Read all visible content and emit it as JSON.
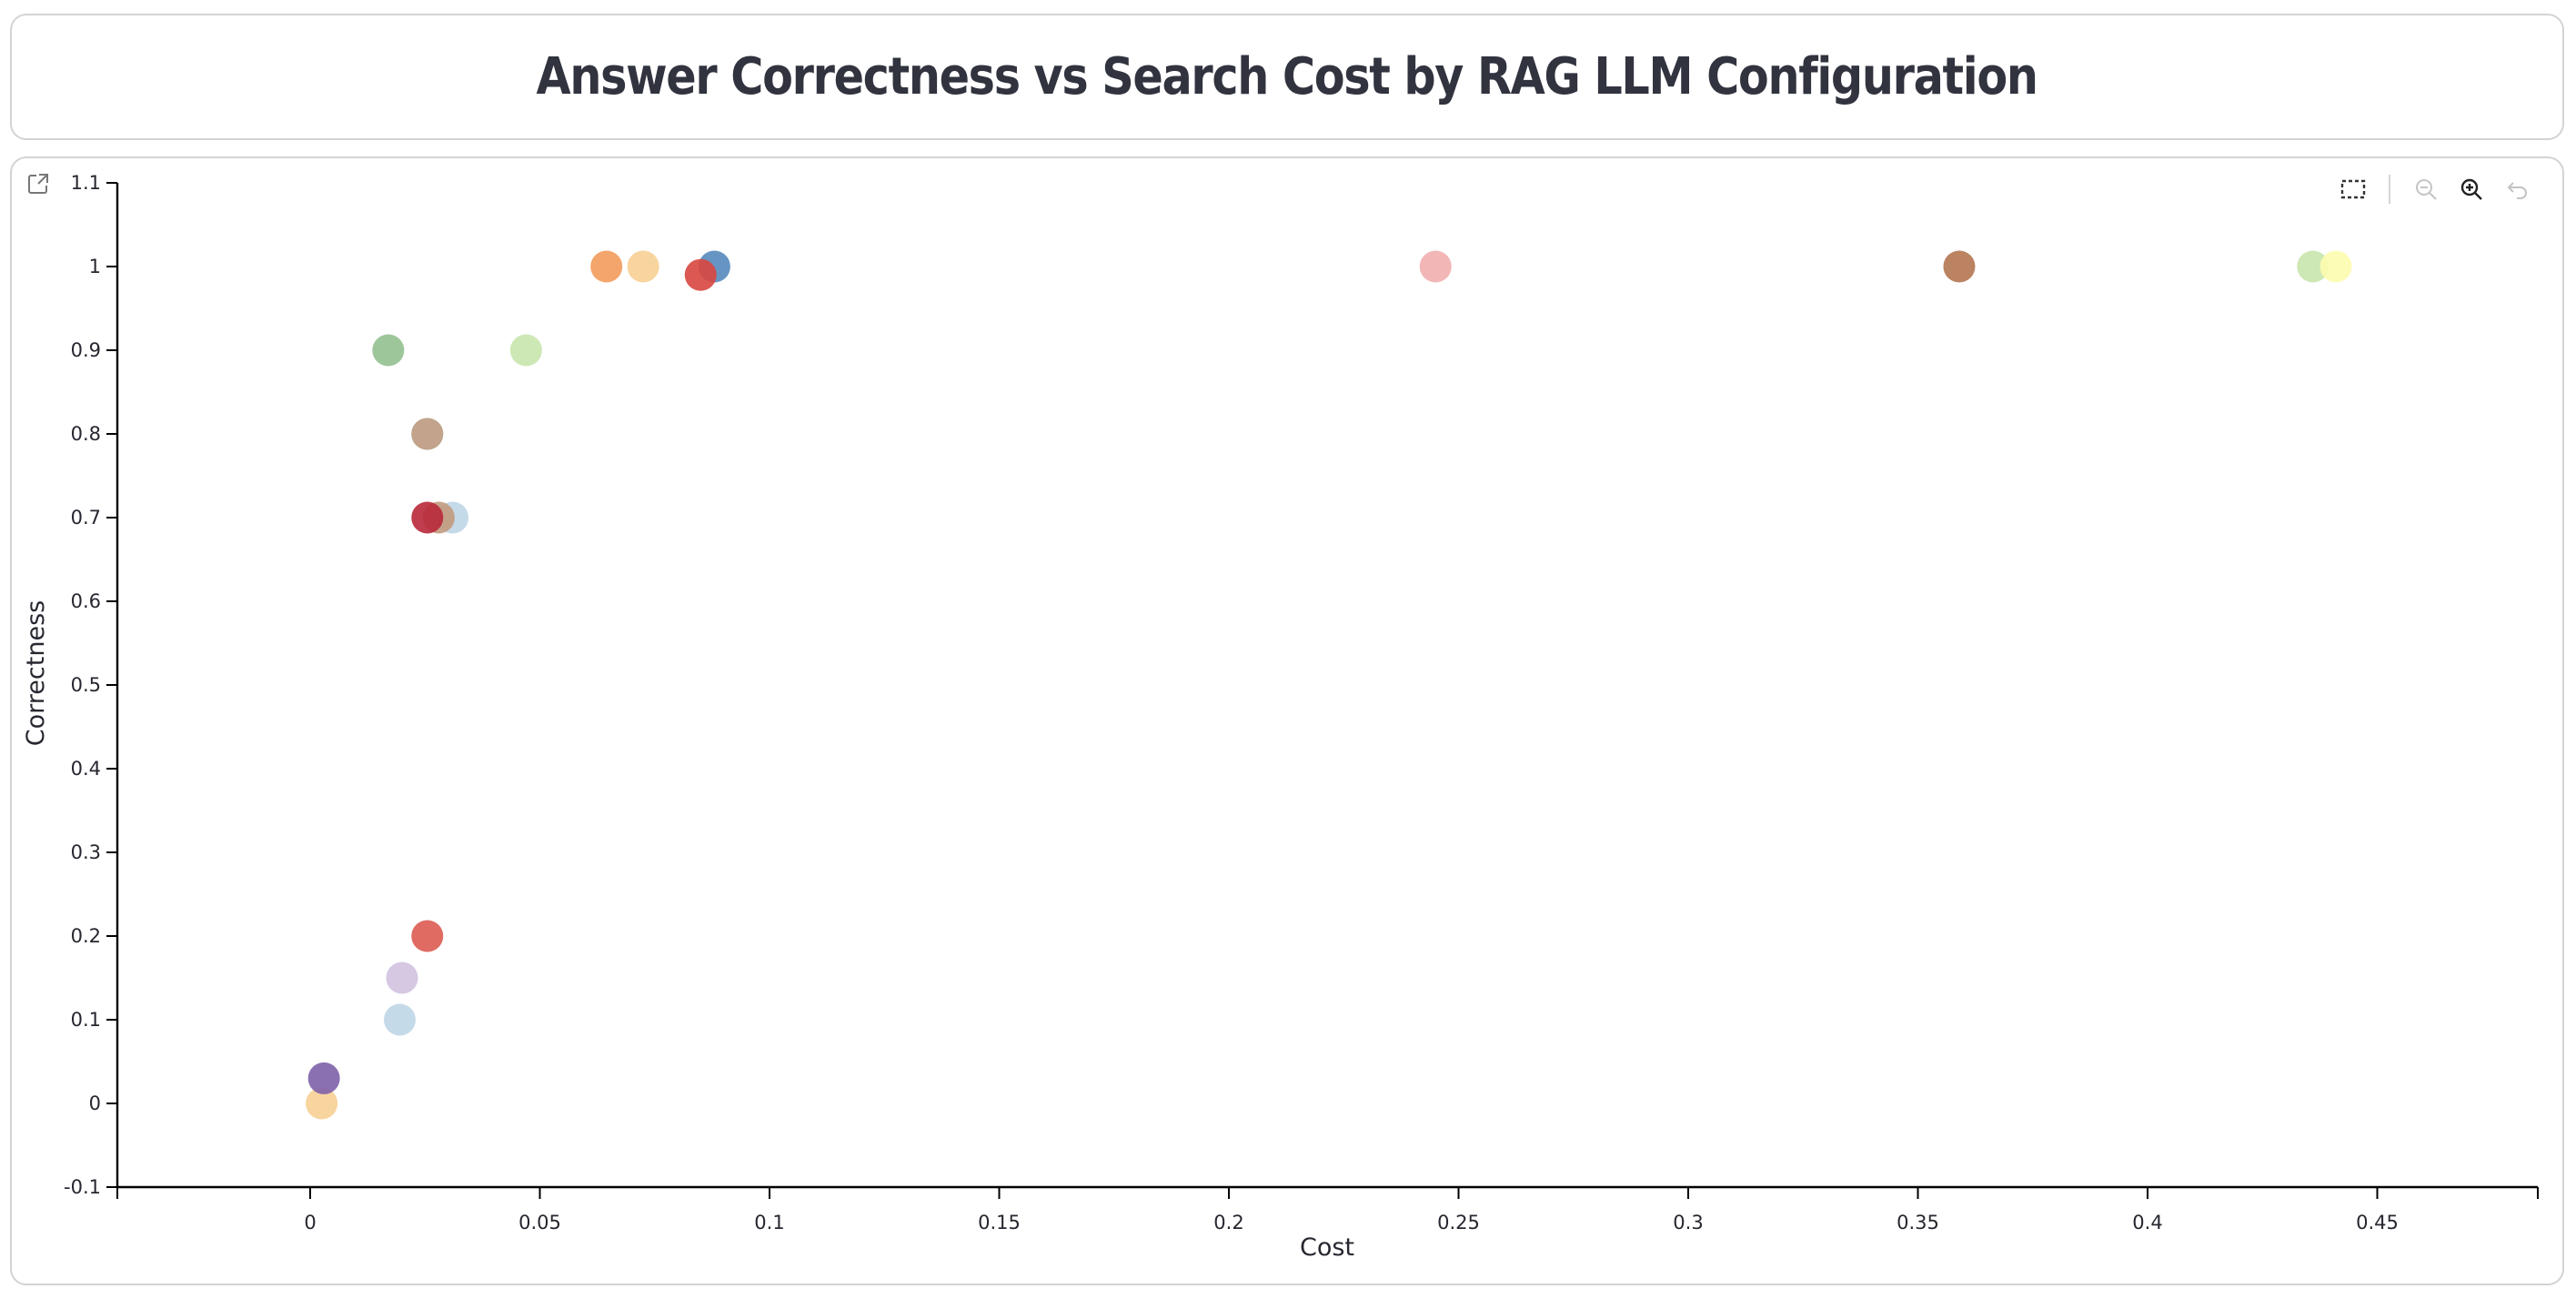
{
  "title": "Answer Correctness vs Search Cost by RAG LLM Configuration",
  "toolbar": {
    "buttons": [
      {
        "name": "box-select-icon",
        "enabled": true
      },
      {
        "name": "zoom-out-icon",
        "enabled": false
      },
      {
        "name": "zoom-in-icon",
        "enabled": true
      },
      {
        "name": "reset-undo-icon",
        "enabled": false
      }
    ],
    "expand_icon": "open-in-new-icon"
  },
  "chart_data": {
    "type": "scatter",
    "title": "Answer Correctness vs Search Cost by RAG LLM Configuration",
    "xlabel": "Cost",
    "ylabel": "Correctness",
    "xlim": [
      -0.042,
      0.485
    ],
    "ylim": [
      -0.1,
      1.1
    ],
    "x_ticks": [
      "0",
      "0.05",
      "0.1",
      "0.15",
      "0.2",
      "0.25",
      "0.3",
      "0.35",
      "0.4",
      "0.45"
    ],
    "x_tick_values": [
      0,
      0.05,
      0.1,
      0.15,
      0.2,
      0.25,
      0.3,
      0.35,
      0.4,
      0.45
    ],
    "y_ticks": [
      "-0.1",
      "0",
      "0.1",
      "0.2",
      "0.3",
      "0.4",
      "0.5",
      "0.6",
      "0.7",
      "0.8",
      "0.9",
      "1",
      "1.1"
    ],
    "y_tick_values": [
      -0.1,
      0,
      0.1,
      0.2,
      0.3,
      0.4,
      0.5,
      0.6,
      0.7,
      0.8,
      0.9,
      1.0,
      1.1
    ],
    "grid": false,
    "legend": "none",
    "points": [
      {
        "x": 0.0025,
        "y": 0.0,
        "color": "#f7cf93"
      },
      {
        "x": 0.003,
        "y": 0.03,
        "color": "#7e60a8"
      },
      {
        "x": 0.0195,
        "y": 0.1,
        "color": "#bfd6e7"
      },
      {
        "x": 0.02,
        "y": 0.15,
        "color": "#d2c2e0"
      },
      {
        "x": 0.0255,
        "y": 0.2,
        "color": "#dc5b51"
      },
      {
        "x": 0.017,
        "y": 0.9,
        "color": "#93c090"
      },
      {
        "x": 0.047,
        "y": 0.9,
        "color": "#c9e5ad"
      },
      {
        "x": 0.0255,
        "y": 0.8,
        "color": "#60b050"
      },
      {
        "x": 0.0255,
        "y": 0.8,
        "color": "#cca190"
      },
      {
        "x": 0.031,
        "y": 0.7,
        "color": "#bfd6e7"
      },
      {
        "x": 0.028,
        "y": 0.7,
        "color": "#c29a7e"
      },
      {
        "x": 0.0255,
        "y": 0.7,
        "color": "#b8283a"
      },
      {
        "x": 0.0645,
        "y": 1.0,
        "color": "#f29b5c"
      },
      {
        "x": 0.0725,
        "y": 1.0,
        "color": "#f7cf93"
      },
      {
        "x": 0.088,
        "y": 1.0,
        "color": "#5789bd"
      },
      {
        "x": 0.085,
        "y": 0.99,
        "color": "#d8463f"
      },
      {
        "x": 0.245,
        "y": 1.0,
        "color": "#f2aeae"
      },
      {
        "x": 0.359,
        "y": 1.0,
        "color": "#b47550"
      },
      {
        "x": 0.436,
        "y": 1.0,
        "color": "#c9e5ad"
      },
      {
        "x": 0.441,
        "y": 1.0,
        "color": "#fdfcaf"
      }
    ]
  }
}
